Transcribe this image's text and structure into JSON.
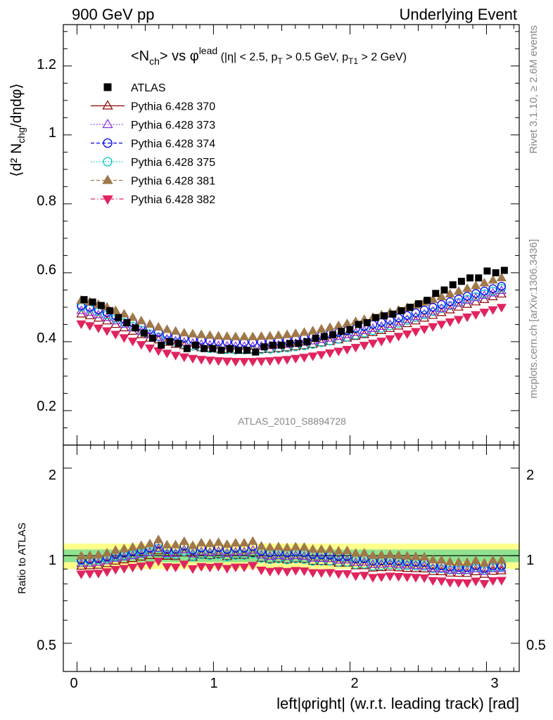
{
  "header": {
    "left": "900 GeV pp",
    "right": "Underlying Event"
  },
  "side_labels": {
    "rivet": "Rivet 3.1.10, ≥ 2.6M events",
    "mcplots": "mcplots.cern.ch [arXiv:1306.3436]"
  },
  "analysis_id": "ATLAS_2010_S8894728",
  "plot_title": {
    "main": "<N",
    "main_sub": "ch",
    "main_after": "> vs φ",
    "main_sup": "lead",
    "cuts_1": " (|η| < 2.5, p",
    "cuts_1_sub": "T",
    "cuts_2": " > 0.5 GeV, p",
    "cuts_2_sub": "T1",
    "cuts_3": " > 2 GeV)"
  },
  "axes": {
    "ylabel_main": "⟨d² N",
    "ylabel_main_sub": "chg",
    "ylabel_main_after": "/dηdφ⟩",
    "ylabel_ratio": "Ratio to ATLAS",
    "xlabel": "left|φright| (w.r.t. leading track) [rad]",
    "main_ticks": [
      "0.2",
      "0.4",
      "0.6",
      "0.8",
      "1",
      "1.2"
    ],
    "ratio_ticks": [
      "0.5",
      "1",
      "2"
    ],
    "x_ticks": [
      "0",
      "1",
      "2",
      "3"
    ]
  },
  "chart_data": {
    "type": "scatter",
    "xlim": [
      -0.1,
      3.24
    ],
    "ylim": [
      0.1,
      1.32
    ],
    "ratio_ylim": [
      0.4,
      2.4
    ],
    "ratio_yscale": "log",
    "ratio_bands": {
      "outer": [
        0.9,
        1.1
      ],
      "inner": [
        0.95,
        1.05
      ]
    },
    "legend_position": "top-left",
    "x": [
      0.0314,
      0.0942,
      0.1571,
      0.2199,
      0.2827,
      0.3456,
      0.4084,
      0.4712,
      0.5341,
      0.5969,
      0.6597,
      0.7226,
      0.7854,
      0.8482,
      0.9111,
      0.9739,
      1.0367,
      1.0996,
      1.1624,
      1.2252,
      1.2881,
      1.3509,
      1.4137,
      1.4765,
      1.5394,
      1.6022,
      1.665,
      1.7279,
      1.7907,
      1.8535,
      1.9164,
      1.9792,
      2.042,
      2.1049,
      2.1677,
      2.2305,
      2.2934,
      2.3562,
      2.419,
      2.4819,
      2.5447,
      2.6075,
      2.6704,
      2.7332,
      2.796,
      2.8588,
      2.9217,
      2.9845,
      3.0473,
      3.1102
    ],
    "series": [
      {
        "name": "ATLAS",
        "color": "#000000",
        "marker": "square",
        "line": "none",
        "values": [
          0.522,
          0.515,
          0.505,
          0.49,
          0.47,
          0.455,
          0.44,
          0.425,
          0.41,
          0.39,
          0.4,
          0.395,
          0.38,
          0.39,
          0.38,
          0.38,
          0.375,
          0.38,
          0.375,
          0.375,
          0.37,
          0.385,
          0.39,
          0.39,
          0.395,
          0.395,
          0.4,
          0.41,
          0.415,
          0.42,
          0.43,
          0.435,
          0.45,
          0.455,
          0.47,
          0.475,
          0.48,
          0.49,
          0.5,
          0.51,
          0.52,
          0.54,
          0.55,
          0.565,
          0.575,
          0.585,
          0.585,
          0.605,
          0.6,
          0.607
        ]
      },
      {
        "name": "Pythia 6.428 370",
        "color": "#8b0000",
        "marker": "triangle-up-open",
        "line": "solid",
        "values": [
          0.48,
          0.475,
          0.468,
          0.46,
          0.45,
          0.44,
          0.43,
          0.42,
          0.41,
          0.405,
          0.398,
          0.392,
          0.388,
          0.385,
          0.382,
          0.38,
          0.378,
          0.377,
          0.376,
          0.376,
          0.376,
          0.377,
          0.378,
          0.38,
          0.382,
          0.385,
          0.388,
          0.392,
          0.396,
          0.4,
          0.405,
          0.41,
          0.415,
          0.42,
          0.426,
          0.432,
          0.438,
          0.445,
          0.452,
          0.46,
          0.468,
          0.476,
          0.484,
          0.492,
          0.5,
          0.508,
          0.515,
          0.522,
          0.53,
          0.538
        ]
      },
      {
        "name": "Pythia 6.428 373",
        "color": "#8a2be2",
        "marker": "triangle-up-open",
        "line": "dotted",
        "values": [
          0.49,
          0.485,
          0.478,
          0.47,
          0.46,
          0.45,
          0.44,
          0.43,
          0.42,
          0.413,
          0.407,
          0.402,
          0.398,
          0.395,
          0.392,
          0.39,
          0.388,
          0.387,
          0.386,
          0.386,
          0.386,
          0.387,
          0.388,
          0.39,
          0.392,
          0.395,
          0.398,
          0.402,
          0.406,
          0.41,
          0.415,
          0.42,
          0.426,
          0.432,
          0.438,
          0.444,
          0.45,
          0.457,
          0.464,
          0.472,
          0.48,
          0.488,
          0.496,
          0.504,
          0.512,
          0.52,
          0.527,
          0.534,
          0.541,
          0.548
        ]
      },
      {
        "name": "Pythia 6.428 374",
        "color": "#0000ee",
        "marker": "circle-open",
        "line": "dashed",
        "values": [
          0.505,
          0.5,
          0.493,
          0.485,
          0.475,
          0.465,
          0.455,
          0.445,
          0.435,
          0.427,
          0.42,
          0.415,
          0.41,
          0.407,
          0.404,
          0.402,
          0.4,
          0.399,
          0.398,
          0.398,
          0.398,
          0.399,
          0.4,
          0.402,
          0.404,
          0.407,
          0.41,
          0.414,
          0.418,
          0.422,
          0.427,
          0.432,
          0.438,
          0.444,
          0.45,
          0.456,
          0.462,
          0.469,
          0.476,
          0.484,
          0.492,
          0.5,
          0.508,
          0.516,
          0.524,
          0.532,
          0.54,
          0.547,
          0.554,
          0.561
        ]
      },
      {
        "name": "Pythia 6.428 375",
        "color": "#00c8c8",
        "marker": "circle-open",
        "line": "dotted",
        "values": [
          0.5,
          0.495,
          0.487,
          0.478,
          0.467,
          0.456,
          0.445,
          0.434,
          0.423,
          0.414,
          0.405,
          0.398,
          0.392,
          0.387,
          0.383,
          0.38,
          0.378,
          0.377,
          0.376,
          0.376,
          0.376,
          0.377,
          0.378,
          0.38,
          0.382,
          0.385,
          0.388,
          0.392,
          0.397,
          0.402,
          0.407,
          0.413,
          0.419,
          0.425,
          0.432,
          0.439,
          0.446,
          0.454,
          0.462,
          0.47,
          0.478,
          0.487,
          0.496,
          0.505,
          0.514,
          0.523,
          0.531,
          0.539,
          0.547,
          0.555
        ]
      },
      {
        "name": "Pythia 6.428 381",
        "color": "#a0784a",
        "marker": "triangle-up-filled",
        "line": "dashed",
        "values": [
          0.52,
          0.515,
          0.508,
          0.5,
          0.49,
          0.48,
          0.47,
          0.46,
          0.45,
          0.442,
          0.435,
          0.43,
          0.425,
          0.422,
          0.42,
          0.418,
          0.416,
          0.415,
          0.414,
          0.414,
          0.414,
          0.415,
          0.416,
          0.418,
          0.42,
          0.423,
          0.427,
          0.431,
          0.436,
          0.441,
          0.446,
          0.452,
          0.458,
          0.464,
          0.47,
          0.477,
          0.484,
          0.491,
          0.498,
          0.506,
          0.514,
          0.522,
          0.53,
          0.538,
          0.546,
          0.554,
          0.562,
          0.57,
          0.578,
          0.585
        ]
      },
      {
        "name": "Pythia 6.428 382",
        "color": "#e0245e",
        "marker": "triangle-down-filled",
        "line": "dash-dot",
        "values": [
          0.452,
          0.447,
          0.44,
          0.432,
          0.422,
          0.412,
          0.402,
          0.392,
          0.382,
          0.374,
          0.367,
          0.361,
          0.356,
          0.352,
          0.349,
          0.347,
          0.345,
          0.344,
          0.343,
          0.343,
          0.343,
          0.344,
          0.345,
          0.347,
          0.349,
          0.352,
          0.355,
          0.359,
          0.363,
          0.368,
          0.373,
          0.378,
          0.384,
          0.39,
          0.396,
          0.402,
          0.409,
          0.416,
          0.423,
          0.43,
          0.437,
          0.444,
          0.451,
          0.458,
          0.465,
          0.472,
          0.479,
          0.486,
          0.493,
          0.5
        ]
      }
    ]
  }
}
